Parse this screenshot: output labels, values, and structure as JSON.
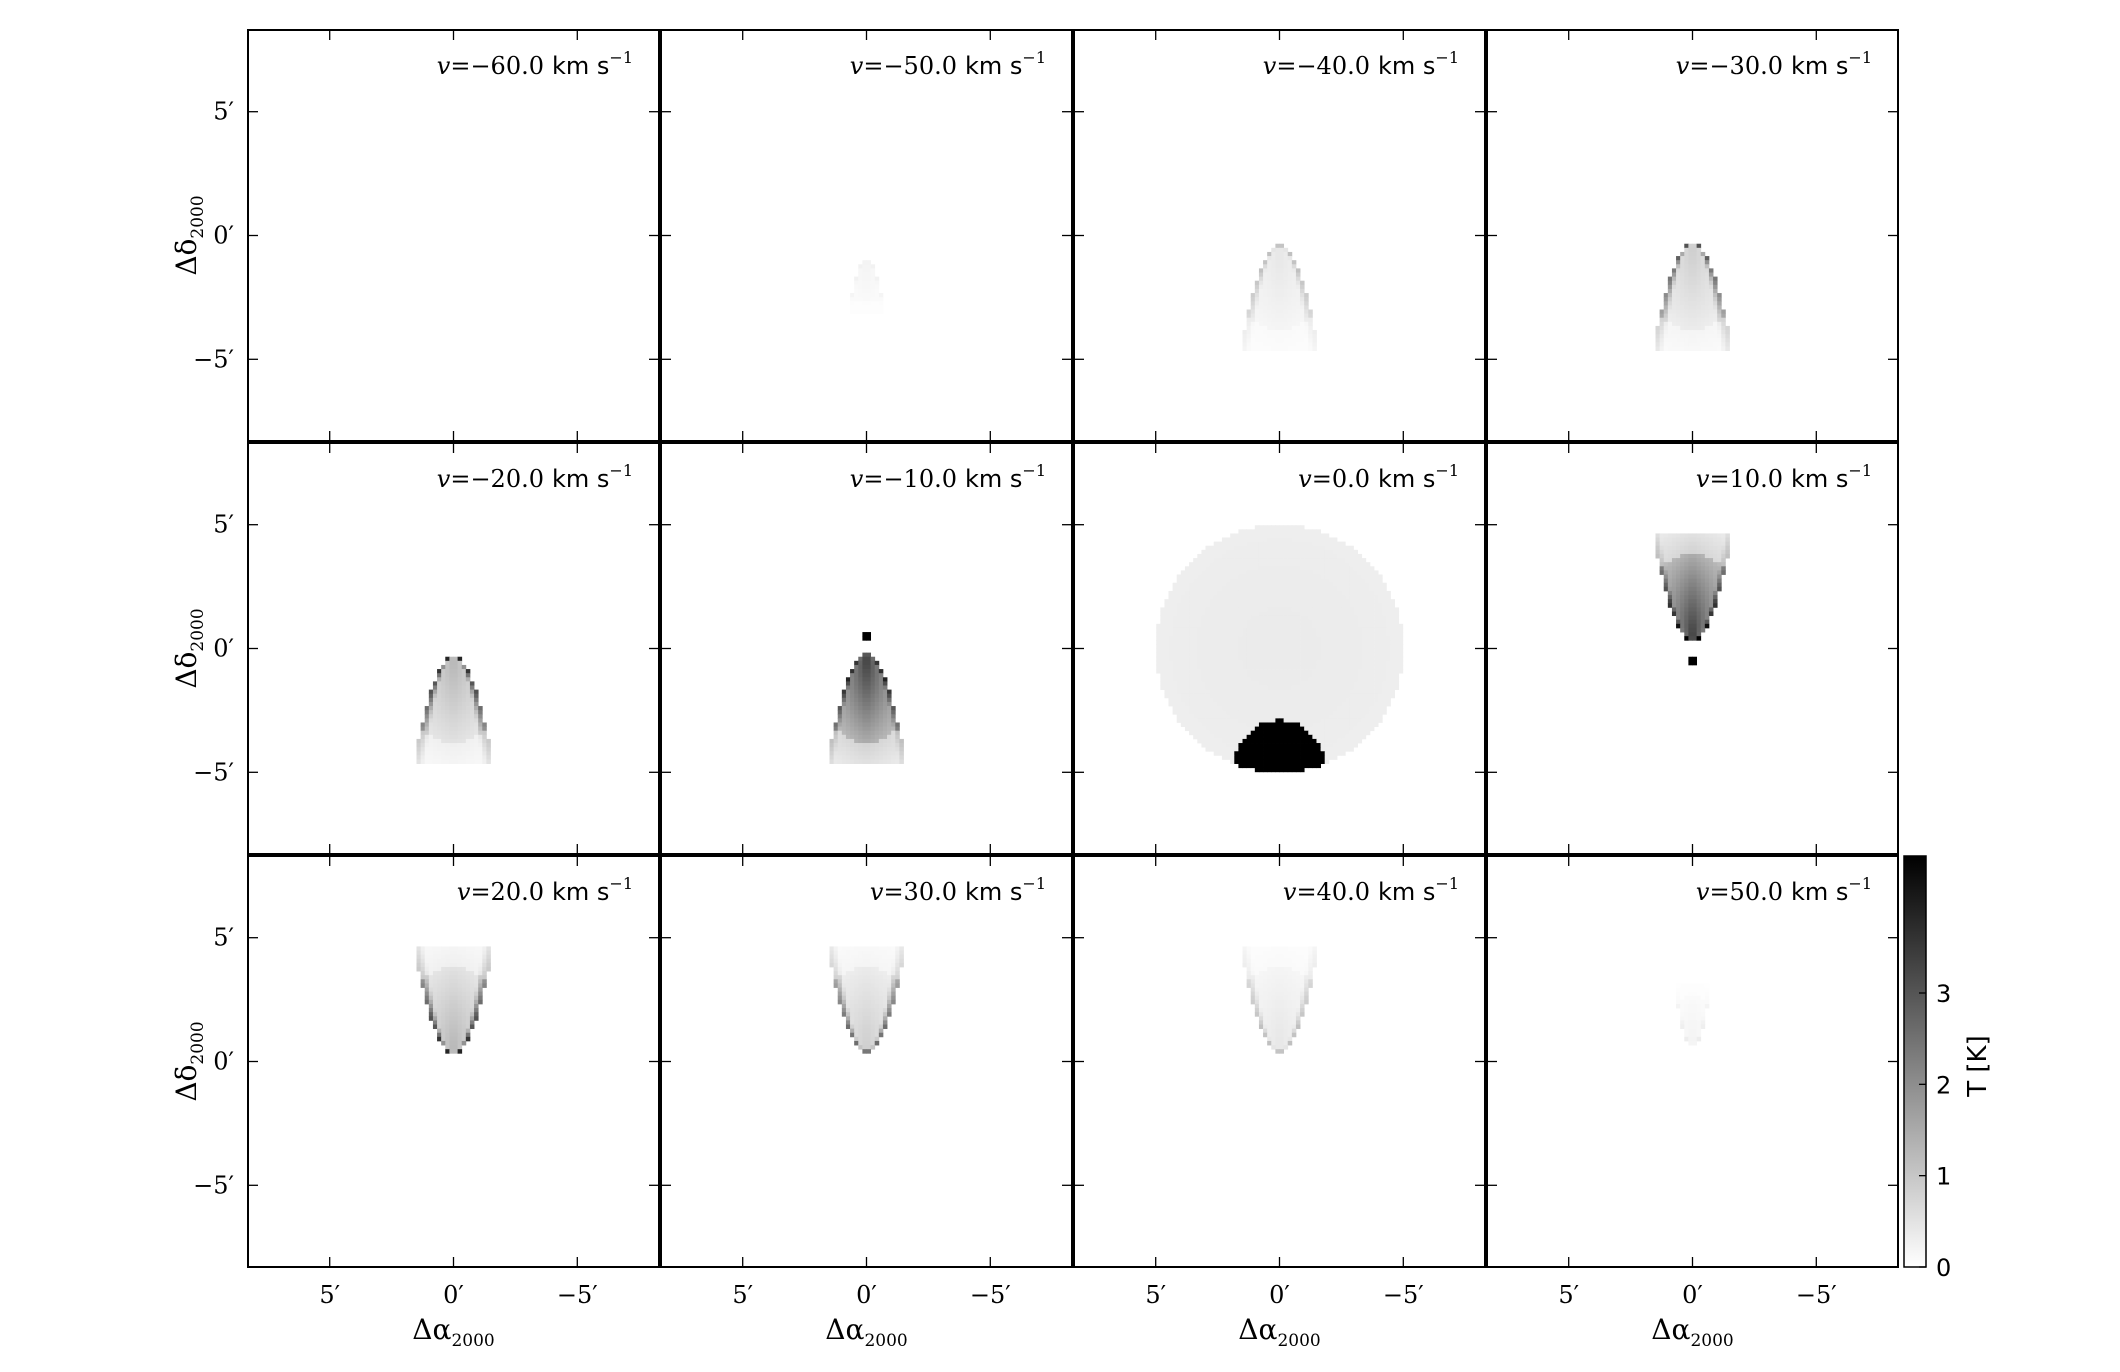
{
  "chart_data": {
    "type": "heatmap",
    "description_units": "channel maps of brightness temperature",
    "rows": 3,
    "cols": 4,
    "panels": [
      {
        "v": -60.0,
        "label": "v = -60.0 km s^-1",
        "emission": {
          "kind": "none"
        }
      },
      {
        "v": -50.0,
        "label": "v = -50.0 km s^-1",
        "emission": {
          "kind": "cap_down",
          "apex": -0.9,
          "yext": -3.2,
          "halfwidth": 0.75,
          "peak": 0.35,
          "rim_frac": 0.6
        }
      },
      {
        "v": -40.0,
        "label": "v = -40.0 km s^-1",
        "emission": {
          "kind": "cap_down",
          "apex": -0.4,
          "yext": -4.7,
          "halfwidth": 1.6,
          "peak": 1.3,
          "rim_frac": 0.3
        }
      },
      {
        "v": -30.0,
        "label": "v = -30.0 km s^-1",
        "emission": {
          "kind": "cap_down",
          "apex": -0.3,
          "yext": -4.7,
          "halfwidth": 1.6,
          "peak": 3.0,
          "rim_frac": 0.25
        }
      },
      {
        "v": -20.0,
        "label": "v = -20.0 km s^-1",
        "emission": {
          "kind": "cap_down",
          "apex": -0.3,
          "yext": -4.7,
          "halfwidth": 1.6,
          "peak": 3.8,
          "rim_frac": 0.3
        }
      },
      {
        "v": -10.0,
        "label": "v = -10.0 km s^-1",
        "emission": {
          "kind": "cap_down",
          "apex": -0.2,
          "yext": -4.7,
          "halfwidth": 1.6,
          "peak": 4.5,
          "rim_frac": 0.75,
          "blob_y": 0.55
        }
      },
      {
        "v": 0.0,
        "label": "v = 0.0 km s^-1",
        "emission": {
          "kind": "disk",
          "radius": 5.0,
          "disk_T": 0.35,
          "dome_center_y": -5.0,
          "dome_rx": 1.9,
          "dome_ry": 2.1,
          "dome_T": 4.5
        }
      },
      {
        "v": 10.0,
        "label": "v = 10.0 km s^-1",
        "emission": {
          "kind": "cap_up",
          "apex": 0.3,
          "yext": 4.7,
          "halfwidth": 1.6,
          "peak": 4.5,
          "rim_frac": 0.75,
          "blob_y": -0.55
        }
      },
      {
        "v": 20.0,
        "label": "v = 20.0 km s^-1",
        "emission": {
          "kind": "cap_up",
          "apex": 0.3,
          "yext": 4.7,
          "halfwidth": 1.6,
          "peak": 3.8,
          "rim_frac": 0.3
        }
      },
      {
        "v": 30.0,
        "label": "v = 30.0 km s^-1",
        "emission": {
          "kind": "cap_up",
          "apex": 0.4,
          "yext": 4.7,
          "halfwidth": 1.6,
          "peak": 3.0,
          "rim_frac": 0.25
        }
      },
      {
        "v": 40.0,
        "label": "v = 40.0 km s^-1",
        "emission": {
          "kind": "cap_up",
          "apex": 0.4,
          "yext": 4.7,
          "halfwidth": 1.6,
          "peak": 1.3,
          "rim_frac": 0.3
        }
      },
      {
        "v": 50.0,
        "label": "v = 50.0 km s^-1",
        "emission": {
          "kind": "cap_up",
          "apex": 0.6,
          "yext": 3.2,
          "halfwidth": 0.75,
          "peak": 0.35,
          "rim_frac": 0.6
        }
      }
    ],
    "label_parts": {
      "v_symbol": "v",
      "equals": "=",
      "unit": "km s",
      "unit_exp": "−1"
    },
    "xlabel": {
      "symbol": "Δα",
      "sub": "2000"
    },
    "ylabel": {
      "symbol": "Δδ",
      "sub": "2000"
    },
    "xlim": [
      8.3,
      -8.3
    ],
    "ylim": [
      -8.3,
      8.3
    ],
    "xticks": [
      5,
      0,
      -5
    ],
    "yticks": [
      5,
      0,
      -5
    ],
    "xtick_labels": [
      "5′",
      "0′",
      "−5′"
    ],
    "ytick_labels": [
      "5′",
      "0′",
      "−5′"
    ],
    "colorbar": {
      "label": "T [K]",
      "ticks": [
        0,
        1,
        2,
        3
      ],
      "tick_labels": [
        "0",
        "1",
        "2",
        "3"
      ],
      "range": [
        0,
        4.5
      ],
      "cmap": "gray_r"
    },
    "grid": false,
    "colors": {
      "axis": "#000000",
      "max_emission": "#000000",
      "zero_emission": "#ffffff"
    }
  }
}
